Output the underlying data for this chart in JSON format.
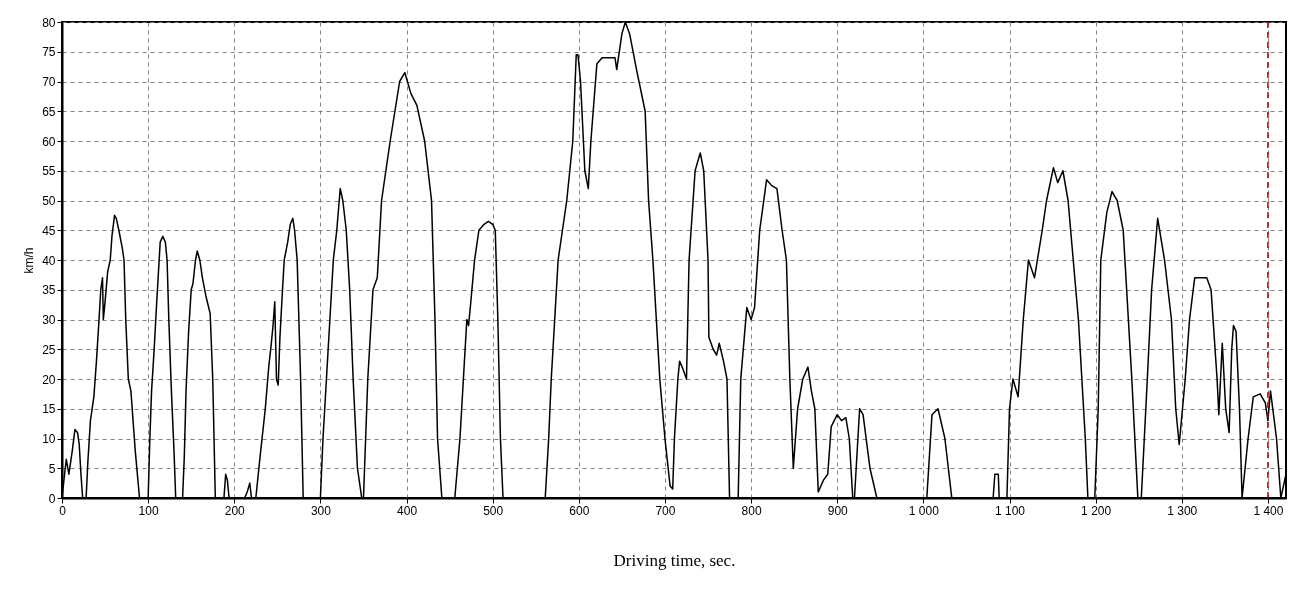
{
  "chart_data": {
    "type": "line",
    "xlabel": "Driving time, sec.",
    "ylabel": "km/h",
    "x": [
      0,
      3,
      5,
      8,
      12,
      15,
      18,
      20,
      22,
      24,
      28,
      30,
      33,
      37,
      40,
      43,
      45,
      47,
      48,
      50,
      53,
      56,
      58,
      61,
      63,
      66,
      70,
      72,
      74,
      77,
      80,
      85,
      90,
      100,
      102,
      104,
      107,
      110,
      112,
      114,
      117,
      120,
      122,
      124,
      127,
      130,
      132,
      140,
      142,
      144,
      147,
      150,
      152,
      155,
      157,
      160,
      163,
      167,
      172,
      175,
      178,
      188,
      190,
      192,
      194,
      212,
      215,
      218,
      220,
      225,
      230,
      236,
      240,
      243,
      245,
      247,
      249,
      251,
      253,
      256,
      258,
      262,
      265,
      268,
      270,
      273,
      277,
      280,
      300,
      303,
      307,
      311,
      315,
      319,
      323,
      326,
      330,
      334,
      338,
      343,
      348,
      350,
      355,
      361,
      366,
      371,
      381,
      392,
      398,
      405,
      412,
      421,
      429,
      433,
      436,
      441,
      456,
      462,
      466,
      470,
      472,
      474,
      479,
      484,
      490,
      495,
      500,
      503,
      506,
      509,
      512,
      561,
      565,
      568,
      572,
      576,
      581,
      586,
      593,
      597,
      599,
      602,
      607,
      611,
      614,
      621,
      627,
      633,
      638,
      642,
      644,
      650,
      654,
      659,
      667,
      677,
      681,
      686,
      690,
      694,
      700,
      706,
      709,
      711,
      715,
      717,
      720,
      725,
      728,
      735,
      741,
      745,
      750,
      751,
      756,
      760,
      763,
      768,
      772,
      775,
      785,
      788,
      795,
      800,
      804,
      810,
      818,
      824,
      830,
      836,
      841,
      845,
      849,
      854,
      860,
      866,
      870,
      874,
      878,
      884,
      889,
      893,
      900,
      905,
      910,
      914,
      918,
      920,
      926,
      930,
      938,
      946,
      1004,
      1010,
      1017,
      1025,
      1029,
      1033,
      1081,
      1083,
      1087,
      1088,
      1097,
      1100,
      1104,
      1110,
      1116,
      1122,
      1129,
      1138,
      1143,
      1151,
      1156,
      1162,
      1168,
      1174,
      1180,
      1188,
      1191,
      1199,
      1203,
      1206,
      1213,
      1219,
      1225,
      1232,
      1242,
      1249,
      1253,
      1260,
      1265,
      1272,
      1280,
      1288,
      1293,
      1297,
      1304,
      1309,
      1315,
      1322,
      1329,
      1334,
      1341,
      1343,
      1347,
      1351,
      1355,
      1358,
      1360,
      1363,
      1367,
      1370,
      1377,
      1383,
      1391,
      1397,
      1400,
      1403,
      1410,
      1415,
      1418,
      1421
    ],
    "values": [
      0,
      4,
      6.5,
      4,
      8,
      11.5,
      11,
      9,
      4,
      0,
      0,
      6,
      13,
      17,
      23,
      30,
      35,
      37,
      30,
      33,
      38,
      40,
      44,
      47.5,
      47,
      45,
      42,
      40,
      30,
      20,
      18,
      8,
      0,
      0,
      10,
      18,
      25,
      33,
      38,
      43,
      44,
      43,
      40,
      30,
      18,
      8,
      0,
      0,
      7,
      18,
      28,
      35,
      36,
      40,
      41.5,
      40,
      37,
      34,
      31,
      20,
      0,
      0,
      4,
      3,
      0,
      0,
      1,
      2.5,
      0,
      0,
      7,
      15,
      22,
      26,
      29,
      33,
      20,
      19,
      27,
      35,
      40,
      43,
      46,
      47,
      45,
      40,
      20,
      0,
      0,
      10,
      20,
      30,
      40,
      45,
      52,
      50,
      45,
      35,
      20,
      5,
      0,
      0,
      20,
      35,
      37,
      50,
      60,
      70,
      71.5,
      68,
      66,
      60,
      50,
      30,
      10,
      0,
      0,
      10,
      20,
      30,
      29,
      32,
      40,
      45,
      46,
      46.5,
      46,
      45,
      30,
      10,
      0,
      0,
      10,
      20,
      30,
      40,
      45,
      50,
      60,
      74.5,
      74.5,
      70,
      55,
      52,
      60,
      73,
      74,
      74,
      74,
      74,
      72,
      78,
      80,
      78,
      72,
      65,
      50,
      40,
      30,
      20,
      10,
      2,
      1.5,
      10,
      20,
      23,
      22,
      20,
      40,
      55,
      58,
      55,
      40,
      27,
      25,
      24,
      26,
      23,
      20,
      0,
      0,
      20,
      32,
      30,
      32,
      45,
      53.5,
      52.5,
      52,
      45,
      40,
      20,
      5,
      15,
      20,
      22,
      18,
      15,
      1,
      3,
      4,
      12,
      14,
      13,
      13.5,
      10,
      0,
      0,
      15,
      14,
      5,
      0,
      0,
      14,
      15,
      10,
      5,
      0,
      0,
      4,
      4,
      0,
      0,
      15,
      20,
      17,
      30,
      40,
      37,
      45,
      50,
      55.5,
      53,
      55,
      50,
      40,
      30,
      10,
      0,
      0,
      15,
      40,
      48,
      51.5,
      50,
      45,
      20,
      0,
      0,
      20,
      35,
      47,
      40,
      30,
      15,
      9,
      20,
      30,
      37,
      37,
      37,
      35,
      20,
      14,
      26,
      15,
      11,
      25,
      29,
      28,
      15,
      0,
      10,
      17,
      17.5,
      16,
      13,
      18,
      10,
      0,
      2,
      4
    ],
    "color": "#000000",
    "line_style": "solid",
    "marker": "none",
    "xlim": [
      0,
      1421
    ],
    "ylim": [
      0,
      80
    ],
    "xticks": [
      0,
      100,
      200,
      300,
      400,
      500,
      600,
      700,
      800,
      900,
      {
        "value": 1000,
        "label": "1 000"
      },
      {
        "value": 1100,
        "label": "1 100"
      },
      {
        "value": 1200,
        "label": "1 200"
      },
      {
        "value": 1300,
        "label": "1 300"
      },
      {
        "value": 1400,
        "label": "1 400"
      }
    ],
    "yticks": [
      0,
      5,
      10,
      15,
      20,
      25,
      30,
      35,
      40,
      45,
      50,
      55,
      60,
      65,
      70,
      75,
      80
    ],
    "grid": true,
    "ref_lines": [
      {
        "axis": "x",
        "value": 1400,
        "color": "#c00000",
        "line_style": "dashed"
      }
    ]
  }
}
